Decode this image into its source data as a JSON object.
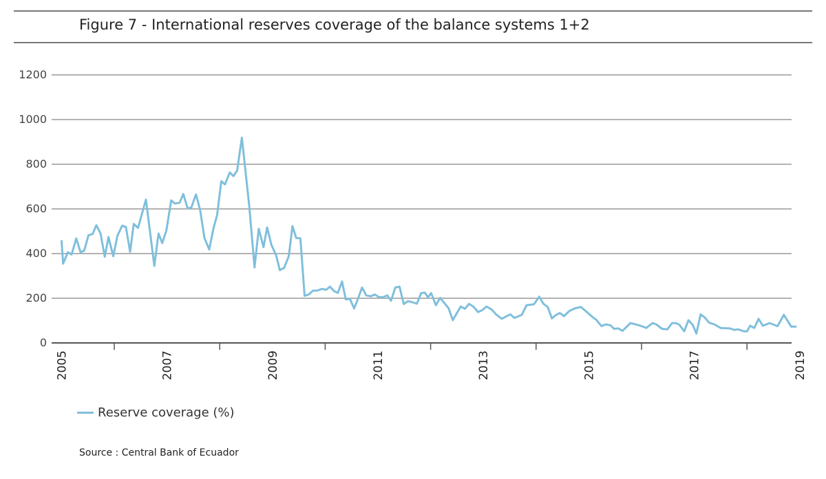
{
  "chart_data": {
    "type": "line",
    "title": "Figure 7 - International reserves coverage of the balance systems 1+2",
    "xlabel": "",
    "ylabel": "",
    "ylim": [
      0,
      1200
    ],
    "xlim": [
      2005,
      2019
    ],
    "yticks": [
      "0",
      "200",
      "400",
      "600",
      "800",
      "1000",
      "1200"
    ],
    "ytick_values": [
      0,
      200,
      400,
      600,
      800,
      1000,
      1200
    ],
    "xticks": [
      "2005",
      "2007",
      "2009",
      "2011",
      "2013",
      "2015",
      "2017",
      "2019"
    ],
    "xtick_values": [
      2005,
      2007,
      2009,
      2011,
      2013,
      2015,
      2017,
      2019
    ],
    "minor_ticks": [
      2006,
      2008,
      2010,
      2012,
      2014,
      2016,
      2018
    ],
    "grid": true,
    "legend_position": "bottom-left",
    "series": [
      {
        "name": "Reserve coverage (%)",
        "color": "#7fbfdc",
        "points": [
          [
            2005.0,
            460
          ],
          [
            2005.03,
            355
          ],
          [
            2005.12,
            406
          ],
          [
            2005.19,
            396
          ],
          [
            2005.28,
            468
          ],
          [
            2005.36,
            406
          ],
          [
            2005.43,
            413
          ],
          [
            2005.51,
            482
          ],
          [
            2005.59,
            488
          ],
          [
            2005.66,
            527
          ],
          [
            2005.74,
            490
          ],
          [
            2005.82,
            386
          ],
          [
            2005.89,
            474
          ],
          [
            2005.98,
            388
          ],
          [
            2006.06,
            480
          ],
          [
            2006.15,
            525
          ],
          [
            2006.22,
            519
          ],
          [
            2006.3,
            408
          ],
          [
            2006.37,
            533
          ],
          [
            2006.45,
            515
          ],
          [
            2006.6,
            642
          ],
          [
            2006.76,
            345
          ],
          [
            2006.84,
            490
          ],
          [
            2006.91,
            447
          ],
          [
            2006.99,
            505
          ],
          [
            2007.08,
            638
          ],
          [
            2007.15,
            624
          ],
          [
            2007.24,
            628
          ],
          [
            2007.31,
            667
          ],
          [
            2007.39,
            603
          ],
          [
            2007.46,
            605
          ],
          [
            2007.55,
            665
          ],
          [
            2007.63,
            593
          ],
          [
            2007.71,
            470
          ],
          [
            2007.8,
            418
          ],
          [
            2007.88,
            511
          ],
          [
            2007.95,
            572
          ],
          [
            2008.03,
            724
          ],
          [
            2008.1,
            710
          ],
          [
            2008.19,
            763
          ],
          [
            2008.26,
            747
          ],
          [
            2008.33,
            771
          ],
          [
            2008.42,
            919
          ],
          [
            2008.56,
            613
          ],
          [
            2008.66,
            338
          ],
          [
            2008.74,
            511
          ],
          [
            2008.83,
            429
          ],
          [
            2008.9,
            517
          ],
          [
            2008.98,
            439
          ],
          [
            2009.07,
            392
          ],
          [
            2009.14,
            326
          ],
          [
            2009.22,
            336
          ],
          [
            2009.31,
            388
          ],
          [
            2009.38,
            523
          ],
          [
            2009.45,
            470
          ],
          [
            2009.53,
            468
          ],
          [
            2009.61,
            211
          ],
          [
            2009.69,
            217
          ],
          [
            2009.77,
            234
          ],
          [
            2009.85,
            234
          ],
          [
            2009.94,
            242
          ],
          [
            2010.02,
            238
          ],
          [
            2010.09,
            252
          ],
          [
            2010.17,
            232
          ],
          [
            2010.24,
            224
          ],
          [
            2010.32,
            275
          ],
          [
            2010.39,
            195
          ],
          [
            2010.47,
            197
          ],
          [
            2010.55,
            154
          ],
          [
            2010.63,
            203
          ],
          [
            2010.7,
            248
          ],
          [
            2010.78,
            213
          ],
          [
            2010.87,
            209
          ],
          [
            2010.94,
            217
          ],
          [
            2011.02,
            205
          ],
          [
            2011.1,
            205
          ],
          [
            2011.18,
            213
          ],
          [
            2011.25,
            189
          ],
          [
            2011.33,
            248
          ],
          [
            2011.41,
            252
          ],
          [
            2011.49,
            174
          ],
          [
            2011.57,
            187
          ],
          [
            2011.64,
            183
          ],
          [
            2011.74,
            176
          ],
          [
            2011.82,
            223
          ],
          [
            2011.89,
            225
          ],
          [
            2011.95,
            204
          ],
          [
            2012.01,
            223
          ],
          [
            2012.1,
            169
          ],
          [
            2012.18,
            202
          ],
          [
            2012.34,
            156
          ],
          [
            2012.42,
            102
          ],
          [
            2012.57,
            163
          ],
          [
            2012.65,
            153
          ],
          [
            2012.73,
            175
          ],
          [
            2012.81,
            163
          ],
          [
            2012.9,
            138
          ],
          [
            2012.98,
            147
          ],
          [
            2013.06,
            163
          ],
          [
            2013.16,
            149
          ],
          [
            2013.24,
            128
          ],
          [
            2013.35,
            108
          ],
          [
            2013.43,
            118
          ],
          [
            2013.51,
            128
          ],
          [
            2013.59,
            112
          ],
          [
            2013.73,
            126
          ],
          [
            2013.82,
            169
          ],
          [
            2013.96,
            173
          ],
          [
            2014.06,
            207
          ],
          [
            2014.14,
            175
          ],
          [
            2014.22,
            161
          ],
          [
            2014.3,
            110
          ],
          [
            2014.37,
            124
          ],
          [
            2014.45,
            134
          ],
          [
            2014.53,
            120
          ],
          [
            2014.63,
            143
          ],
          [
            2014.74,
            155
          ],
          [
            2014.85,
            161
          ],
          [
            2014.94,
            143
          ],
          [
            2015.07,
            116
          ],
          [
            2015.14,
            104
          ],
          [
            2015.24,
            75
          ],
          [
            2015.32,
            83
          ],
          [
            2015.41,
            79
          ],
          [
            2015.48,
            63
          ],
          [
            2015.56,
            65
          ],
          [
            2015.64,
            54
          ],
          [
            2015.79,
            89
          ],
          [
            2015.92,
            81
          ],
          [
            2016.0,
            75
          ],
          [
            2016.09,
            67
          ],
          [
            2016.21,
            89
          ],
          [
            2016.28,
            83
          ],
          [
            2016.39,
            63
          ],
          [
            2016.49,
            61
          ],
          [
            2016.58,
            89
          ],
          [
            2016.65,
            89
          ],
          [
            2016.72,
            81
          ],
          [
            2016.81,
            52
          ],
          [
            2016.89,
            102
          ],
          [
            2016.97,
            81
          ],
          [
            2017.04,
            42
          ],
          [
            2017.12,
            128
          ],
          [
            2017.2,
            114
          ],
          [
            2017.28,
            91
          ],
          [
            2017.38,
            83
          ],
          [
            2017.5,
            67
          ],
          [
            2017.68,
            65
          ],
          [
            2017.76,
            58
          ],
          [
            2017.83,
            61
          ],
          [
            2017.94,
            52
          ],
          [
            2018.0,
            52
          ],
          [
            2018.06,
            77
          ],
          [
            2018.14,
            67
          ],
          [
            2018.22,
            108
          ],
          [
            2018.3,
            77
          ],
          [
            2018.43,
            89
          ],
          [
            2018.58,
            75
          ],
          [
            2018.7,
            126
          ],
          [
            2018.84,
            73
          ],
          [
            2018.94,
            73
          ]
        ]
      }
    ],
    "source": "Source : Central Bank of Ecuador"
  }
}
